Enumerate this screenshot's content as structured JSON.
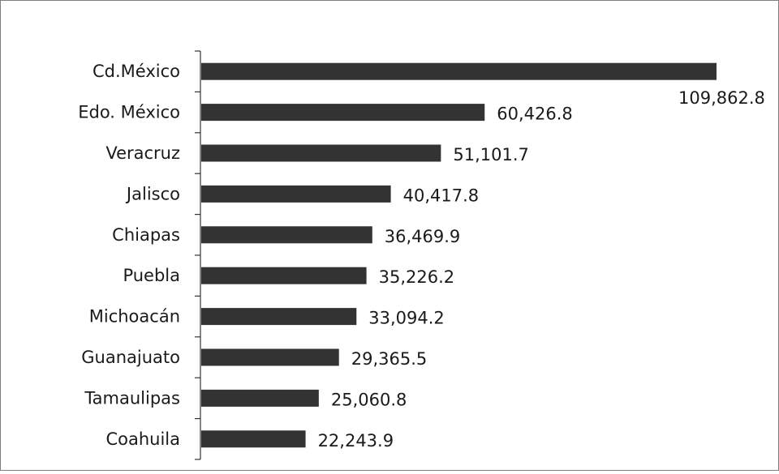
{
  "chart_data": {
    "type": "bar",
    "orientation": "horizontal",
    "title": "",
    "xlabel": "",
    "ylabel": "",
    "categories": [
      "Cd.México",
      "Edo. México",
      "Veracruz",
      "Jalisco",
      "Chiapas",
      "Puebla",
      "Michoacán",
      "Guanajuato",
      "Tamaulipas",
      "Coahuila"
    ],
    "values": [
      109862.8,
      60426.8,
      51101.7,
      40417.8,
      36469.9,
      35226.2,
      33094.2,
      29365.5,
      25060.8,
      22243.9
    ],
    "value_labels": [
      "109,862.8",
      "60,426.8",
      "51,101.7",
      "40,417.8",
      "36,469.9",
      "35,226.2",
      "33,094.2",
      "29,365.5",
      "25,060.8",
      "22,243.9"
    ],
    "xlim": [
      0,
      109862.8
    ],
    "grid": false,
    "legend": "none",
    "bar_color": "#333333",
    "axis_color": "#333333"
  }
}
